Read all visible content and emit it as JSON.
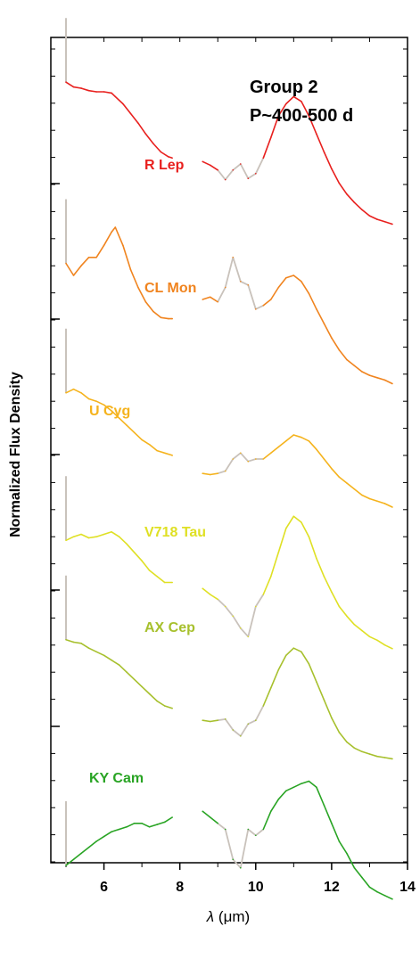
{
  "chart_data": {
    "type": "line",
    "title_line1": "Group 2",
    "title_line2": "P~400-500 d",
    "xlabel_symbol": "λ",
    "xlabel_unit": "(μm)",
    "ylabel": "Normalized Flux Density",
    "xlim": [
      4.6,
      14.0
    ],
    "xticks": [
      "6",
      "8",
      "10",
      "12",
      "14"
    ],
    "xtick_values": [
      6,
      8,
      10,
      12,
      14
    ],
    "gap_color": "#c9c2bb",
    "series": [
      {
        "name": "R Lep",
        "color": "#e8201e",
        "offset": 0,
        "x": [
          5.0,
          5.2,
          5.4,
          5.6,
          5.8,
          6.0,
          6.2,
          6.3,
          6.5,
          6.7,
          6.9,
          7.1,
          7.3,
          7.5,
          7.7,
          7.8,
          8.6,
          8.8,
          9.0,
          9.2,
          9.4,
          9.6,
          9.8,
          10.0,
          10.2,
          10.4,
          10.6,
          10.8,
          11.0,
          11.2,
          11.4,
          11.6,
          11.8,
          12.0,
          12.2,
          12.4,
          12.6,
          12.8,
          13.0,
          13.2,
          13.4,
          13.6
        ],
        "y": [
          0.78,
          0.74,
          0.73,
          0.71,
          0.7,
          0.7,
          0.69,
          0.66,
          0.6,
          0.52,
          0.44,
          0.35,
          0.27,
          0.2,
          0.16,
          0.15,
          0.12,
          0.09,
          0.05,
          -0.03,
          0.05,
          0.1,
          -0.02,
          0.02,
          0.15,
          0.32,
          0.5,
          0.6,
          0.66,
          0.62,
          0.5,
          0.35,
          0.2,
          0.06,
          -0.06,
          -0.15,
          -0.22,
          -0.28,
          -0.33,
          -0.36,
          -0.38,
          -0.4
        ]
      },
      {
        "name": "CL Mon",
        "color": "#f0841f",
        "offset": 1,
        "x": [
          5.0,
          5.2,
          5.4,
          5.6,
          5.8,
          6.0,
          6.2,
          6.3,
          6.5,
          6.7,
          6.9,
          7.1,
          7.3,
          7.5,
          7.7,
          7.8,
          8.6,
          8.8,
          9.0,
          9.2,
          9.4,
          9.6,
          9.8,
          10.0,
          10.2,
          10.4,
          10.6,
          10.8,
          11.0,
          11.2,
          11.4,
          11.6,
          11.8,
          12.0,
          12.2,
          12.4,
          12.6,
          12.8,
          13.0,
          13.2,
          13.4,
          13.6
        ],
        "y": [
          0.4,
          0.3,
          0.38,
          0.45,
          0.45,
          0.55,
          0.66,
          0.7,
          0.55,
          0.35,
          0.2,
          0.08,
          0.0,
          -0.05,
          -0.06,
          -0.06,
          0.1,
          0.12,
          0.08,
          0.2,
          0.45,
          0.25,
          0.22,
          0.02,
          0.05,
          0.1,
          0.2,
          0.28,
          0.3,
          0.25,
          0.15,
          0.02,
          -0.1,
          -0.22,
          -0.32,
          -0.4,
          -0.45,
          -0.5,
          -0.53,
          -0.55,
          -0.57,
          -0.6
        ]
      },
      {
        "name": "U Cyg",
        "color": "#f5b31d",
        "offset": 2,
        "x": [
          5.0,
          5.2,
          5.4,
          5.6,
          5.8,
          6.0,
          6.2,
          6.4,
          6.6,
          6.8,
          7.0,
          7.2,
          7.4,
          7.6,
          7.8,
          8.6,
          8.8,
          9.0,
          9.2,
          9.4,
          9.6,
          9.8,
          10.0,
          10.2,
          10.4,
          10.6,
          10.8,
          11.0,
          11.2,
          11.4,
          11.6,
          11.8,
          12.0,
          12.2,
          12.4,
          12.6,
          12.8,
          13.0,
          13.2,
          13.4,
          13.6
        ],
        "y": [
          0.45,
          0.48,
          0.45,
          0.4,
          0.38,
          0.35,
          0.3,
          0.24,
          0.18,
          0.12,
          0.06,
          0.02,
          -0.03,
          -0.05,
          -0.07,
          -0.22,
          -0.23,
          -0.22,
          -0.2,
          -0.1,
          -0.05,
          -0.12,
          -0.1,
          -0.1,
          -0.05,
          0.0,
          0.05,
          0.1,
          0.08,
          0.05,
          -0.02,
          -0.1,
          -0.18,
          -0.25,
          -0.3,
          -0.35,
          -0.4,
          -0.43,
          -0.45,
          -0.47,
          -0.5
        ]
      },
      {
        "name": "V718 Tau",
        "color": "#dfe024",
        "offset": 3,
        "x": [
          5.0,
          5.2,
          5.4,
          5.6,
          5.8,
          6.0,
          6.2,
          6.4,
          6.6,
          6.8,
          7.0,
          7.2,
          7.4,
          7.6,
          7.8,
          8.6,
          8.8,
          9.0,
          9.2,
          9.4,
          9.6,
          9.8,
          10.0,
          10.2,
          10.4,
          10.6,
          10.8,
          11.0,
          11.2,
          11.4,
          11.6,
          11.8,
          12.0,
          12.2,
          12.4,
          12.6,
          12.8,
          13.0,
          13.2,
          13.4,
          13.6
        ],
        "y": [
          0.35,
          0.38,
          0.4,
          0.37,
          0.38,
          0.4,
          0.42,
          0.38,
          0.32,
          0.25,
          0.18,
          0.1,
          0.05,
          0.0,
          0.0,
          -0.05,
          -0.1,
          -0.14,
          -0.2,
          -0.28,
          -0.38,
          -0.45,
          -0.2,
          -0.1,
          0.05,
          0.25,
          0.45,
          0.55,
          0.5,
          0.38,
          0.2,
          0.05,
          -0.08,
          -0.2,
          -0.28,
          -0.35,
          -0.4,
          -0.45,
          -0.48,
          -0.52,
          -0.55
        ]
      },
      {
        "name": "AX Cep",
        "color": "#a7c02d",
        "offset": 4,
        "x": [
          5.0,
          5.2,
          5.4,
          5.6,
          5.8,
          6.0,
          6.2,
          6.4,
          6.6,
          6.8,
          7.0,
          7.2,
          7.4,
          7.6,
          7.8,
          8.6,
          8.8,
          9.0,
          9.2,
          9.4,
          9.6,
          9.8,
          10.0,
          10.2,
          10.4,
          10.6,
          10.8,
          11.0,
          11.2,
          11.4,
          11.6,
          11.8,
          12.0,
          12.2,
          12.4,
          12.6,
          12.8,
          13.0,
          13.2,
          13.4,
          13.6
        ],
        "y": [
          0.65,
          0.63,
          0.62,
          0.58,
          0.55,
          0.52,
          0.48,
          0.44,
          0.38,
          0.32,
          0.26,
          0.2,
          0.14,
          0.1,
          0.08,
          -0.02,
          -0.03,
          -0.02,
          -0.01,
          -0.1,
          -0.15,
          -0.05,
          -0.02,
          0.1,
          0.25,
          0.4,
          0.52,
          0.58,
          0.55,
          0.45,
          0.3,
          0.15,
          0.0,
          -0.12,
          -0.2,
          -0.25,
          -0.28,
          -0.3,
          -0.32,
          -0.33,
          -0.34
        ]
      },
      {
        "name": "KY Cam",
        "color": "#29a424",
        "offset": 5,
        "x": [
          5.0,
          5.2,
          5.4,
          5.6,
          5.8,
          6.0,
          6.2,
          6.4,
          6.6,
          6.8,
          7.0,
          7.2,
          7.4,
          7.6,
          7.8,
          8.6,
          8.8,
          9.0,
          9.2,
          9.4,
          9.6,
          9.8,
          10.0,
          10.2,
          10.4,
          10.6,
          10.8,
          11.0,
          11.2,
          11.4,
          11.6,
          11.8,
          12.0,
          12.2,
          12.4,
          12.6,
          12.8,
          13.0,
          13.2,
          13.4,
          13.6
        ],
        "y": [
          -0.1,
          -0.05,
          0.0,
          0.05,
          0.1,
          0.14,
          0.18,
          0.2,
          0.22,
          0.25,
          0.25,
          0.22,
          0.24,
          0.26,
          0.3,
          0.35,
          0.3,
          0.25,
          0.2,
          -0.05,
          -0.12,
          0.2,
          0.15,
          0.2,
          0.35,
          0.45,
          0.52,
          0.55,
          0.58,
          0.6,
          0.55,
          0.4,
          0.25,
          0.1,
          0.0,
          -0.12,
          -0.2,
          -0.28,
          -0.32,
          -0.35,
          -0.38
        ]
      }
    ]
  }
}
